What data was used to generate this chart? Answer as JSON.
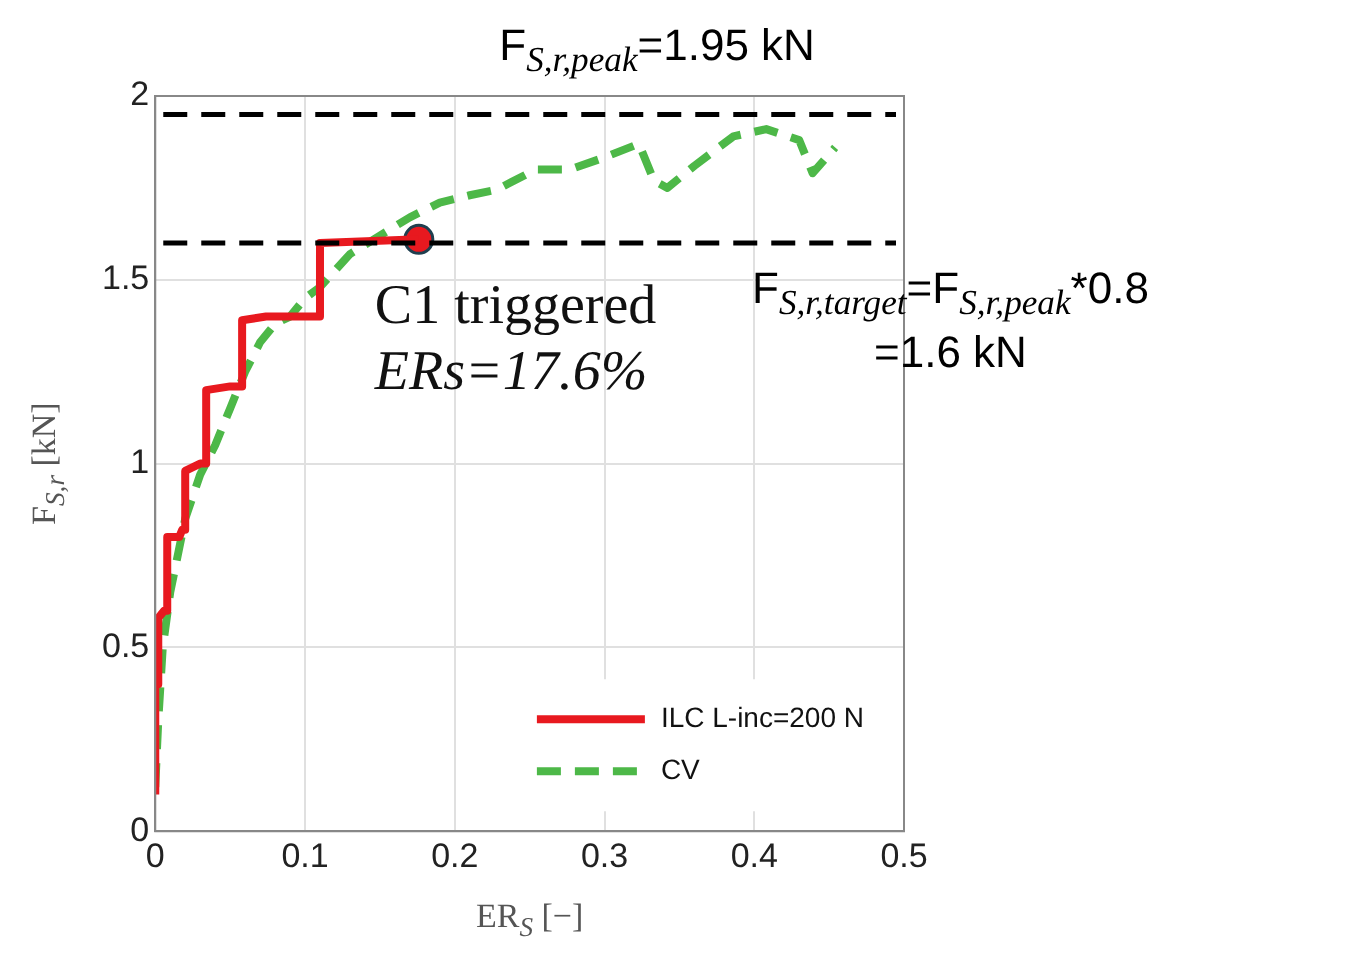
{
  "chart_data": {
    "type": "line",
    "xlabel": "ER$_{S}$ [−]",
    "ylabel": "F$_{S,r}$ [kN]",
    "xlim": [
      0,
      0.5
    ],
    "xticks": [
      0,
      0.1,
      0.2,
      0.3,
      0.4,
      0.5
    ],
    "ylim": [
      0,
      2
    ],
    "yticks": [
      0,
      0.5,
      1,
      1.5,
      2
    ],
    "grid": true,
    "legend": "bottom right",
    "series": [
      {
        "name": "ILC L-inc=200 N",
        "color": "#e8191f",
        "line_style": "solid",
        "x": [
          0,
          0,
          0.002,
          0.002,
          0.006,
          0.008,
          0.008,
          0.016,
          0.018,
          0.02,
          0.02,
          0.03,
          0.034,
          0.034,
          0.05,
          0.058,
          0.058,
          0.074,
          0.11,
          0.11,
          0.176
        ],
        "values": [
          0.1,
          0.4,
          0.4,
          0.58,
          0.6,
          0.6,
          0.8,
          0.8,
          0.82,
          0.82,
          0.98,
          1.0,
          1.0,
          1.2,
          1.21,
          1.21,
          1.39,
          1.4,
          1.4,
          1.6,
          1.61
        ]
      },
      {
        "name": "CV",
        "color": "#4db848",
        "line_style": "dashed",
        "x": [
          0,
          0.002,
          0.005,
          0.01,
          0.015,
          0.02,
          0.03,
          0.04,
          0.05,
          0.06,
          0.07,
          0.08,
          0.09,
          0.1,
          0.11,
          0.13,
          0.15,
          0.17,
          0.19,
          0.21,
          0.228,
          0.254,
          0.277,
          0.298,
          0.323,
          0.333,
          0.342,
          0.36,
          0.386,
          0.408,
          0.43,
          0.439,
          0.454
        ],
        "values": [
          0.12,
          0.3,
          0.5,
          0.65,
          0.75,
          0.85,
          0.97,
          1.05,
          1.15,
          1.25,
          1.33,
          1.38,
          1.4,
          1.45,
          1.48,
          1.57,
          1.62,
          1.67,
          1.71,
          1.73,
          1.745,
          1.8,
          1.8,
          1.83,
          1.87,
          1.77,
          1.75,
          1.81,
          1.89,
          1.91,
          1.88,
          1.79,
          1.86
        ]
      },
      {
        "type": "scatter",
        "color": "#e8191f",
        "marker": "circle",
        "x": [
          0.176
        ],
        "values": [
          1.61
        ]
      }
    ],
    "ref_lines": [
      {
        "axis": "y",
        "value": 1.95,
        "label": "F$_{S,r,peak}$=1.95 kN",
        "color": "#000000",
        "line_style": "dashed"
      },
      {
        "axis": "y",
        "value": 1.6,
        "label": "F$_{S,r,target}$=F$_{S,r,peak}$*0.8\n=1.6 kN",
        "color": "#000000",
        "line_style": "dashed"
      }
    ],
    "annotations": [
      {
        "text": "C1 triggered",
        "x": 0.176,
        "y": 1.61
      },
      {
        "text": "ERs=17.6%",
        "x": 0.176,
        "y": 1.61
      }
    ]
  }
}
